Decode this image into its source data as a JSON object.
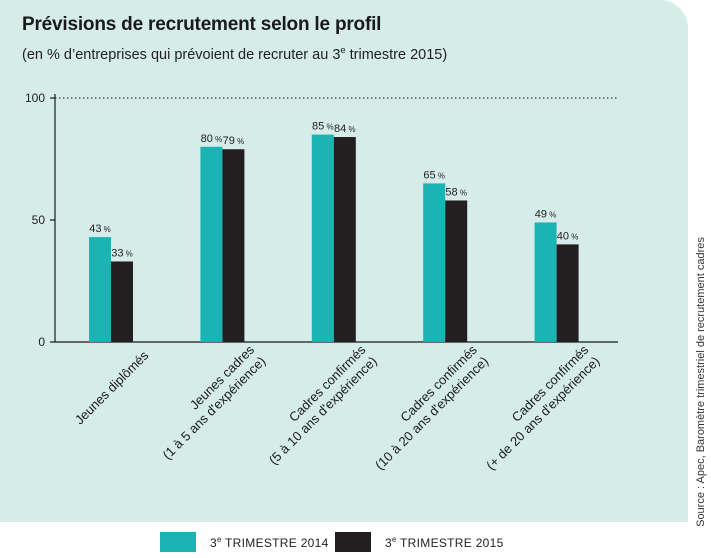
{
  "chart_data": {
    "type": "bar",
    "title": "Prévisions de recrutement selon le profil",
    "subtitle": "(en % d’entreprises qui prévoient de recruter au 3e trimestre 2015)",
    "categories": [
      {
        "line1": "Jeunes diplômés",
        "line2": ""
      },
      {
        "line1": "Jeunes cadres",
        "line2": "(1 à 5 ans d'expérience)"
      },
      {
        "line1": "Cadres confirmés",
        "line2": "(5 à 10 ans d'expérience)"
      },
      {
        "line1": "Cadres confirmés",
        "line2": "(10 à 20 ans d'expérience)"
      },
      {
        "line1": "Cadres confirmés",
        "line2": "(+ de 20 ans d'expérience)"
      }
    ],
    "series": [
      {
        "name": "3e TRIMESTRE 2014",
        "color": "#1bb3b4",
        "values": [
          43,
          80,
          85,
          65,
          49
        ]
      },
      {
        "name": "3e TRIMESTRE 2015",
        "color": "#231f20",
        "values": [
          33,
          79,
          84,
          58,
          40
        ]
      }
    ],
    "value_suffix": " %",
    "yticks": [
      0,
      50,
      100
    ],
    "ylim": [
      0,
      100
    ],
    "grid": "dotted line at 100",
    "legend_position": "bottom"
  },
  "source": "Source : Apec, Baromètre trimestriel de recrutement cadres"
}
